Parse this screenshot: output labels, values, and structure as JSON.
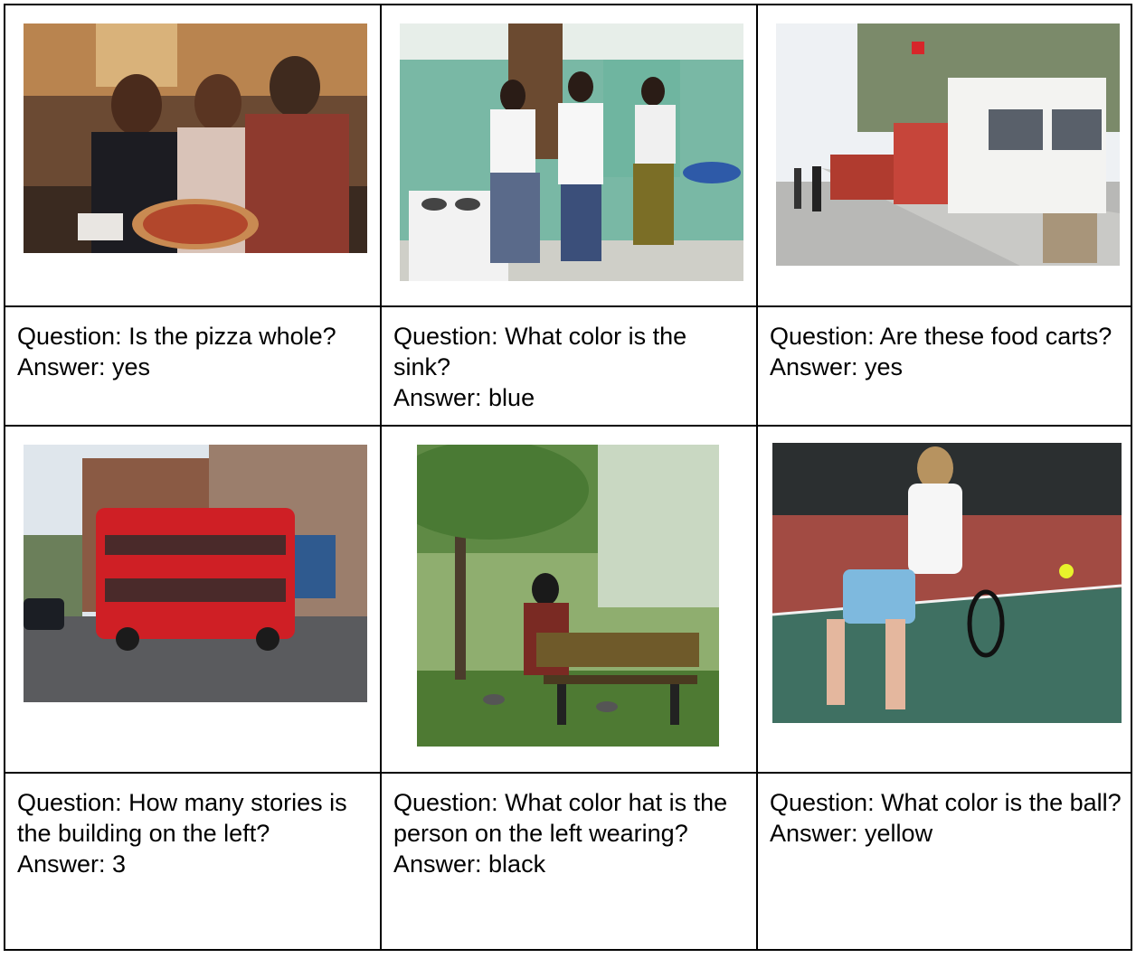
{
  "cells": [
    {
      "question": "Question: Is the pizza whole?",
      "answer": "Answer: yes",
      "image": "pizza-kitchen-photo"
    },
    {
      "question": "Question: What color is the sink?",
      "answer": "Answer: blue",
      "image": "kitchen-women-photo"
    },
    {
      "question": "Question: Are these food carts?",
      "answer": "Answer: yes",
      "image": "food-trucks-street-photo"
    },
    {
      "question": "Question: How many stories is the building on the left?",
      "answer": "Answer: 3",
      "image": "red-double-decker-bus-photo"
    },
    {
      "question": "Question: What color hat is the person on the left wearing?",
      "answer": "Answer: black",
      "image": "park-bench-photo"
    },
    {
      "question": "Question: What color is the ball?",
      "answer": "Answer: yellow",
      "image": "tennis-player-photo"
    }
  ],
  "colors": {
    "border": "#000000",
    "background": "#ffffff"
  }
}
